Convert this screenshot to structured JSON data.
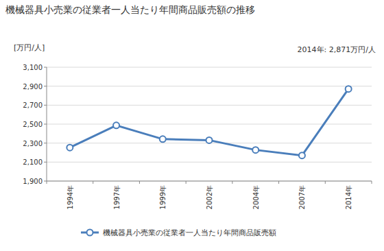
{
  "chart_data": {
    "type": "line",
    "title": "機械器具小売業の従業者一人当たり年間商品販売額の推移",
    "y_label": "[万円/人]",
    "annotation": "2014年: 2,871万円/人",
    "categories": [
      "1994年",
      "1997年",
      "1999年",
      "2002年",
      "2004年",
      "2007年",
      "2014年"
    ],
    "series": [
      {
        "name": "機械器具小売業の従業者一人当たり年間商品販売額",
        "color": "#4a7ebb",
        "marker": "circle",
        "line_style": "solid",
        "values": [
          2253,
          2487,
          2342,
          2331,
          2228,
          2170,
          2871
        ]
      }
    ],
    "ylim": [
      1900,
      3100
    ],
    "yticks": [
      {
        "value": 1900,
        "label": "1,900"
      },
      {
        "value": 2100,
        "label": "2,100"
      },
      {
        "value": 2300,
        "label": "2,300"
      },
      {
        "value": 2500,
        "label": "2,500"
      },
      {
        "value": 2700,
        "label": "2,700"
      },
      {
        "value": 2900,
        "label": "2,900"
      },
      {
        "value": 3100,
        "label": "3,100"
      }
    ],
    "grid": true,
    "legend": "bottom"
  }
}
